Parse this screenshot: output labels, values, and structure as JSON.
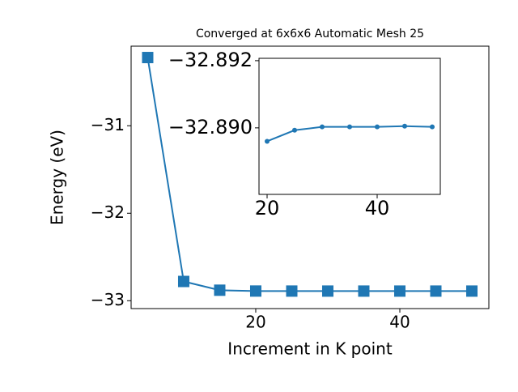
{
  "chart_data": [
    {
      "type": "line",
      "title": "Converged at 6x6x6 Automatic Mesh 25",
      "x_label": "Increment in K point",
      "y_label": "Energy (eV)",
      "x": [
        5,
        10,
        15,
        20,
        25,
        30,
        35,
        40,
        45,
        50
      ],
      "series": [
        {
          "color": "#1f77b4",
          "marker": "square",
          "values": [
            -30.22,
            -32.78,
            -32.88,
            -32.8896,
            -32.88993,
            -32.89003,
            -32.89003,
            -32.89003,
            -32.89005,
            -32.89003
          ]
        }
      ],
      "xlim": [
        2.7,
        52.36
      ],
      "ylim": [
        -33.09,
        -30.09
      ],
      "xticks": [
        20,
        40
      ],
      "yticks": [
        {
          "value": -33,
          "label": "−33"
        },
        {
          "value": -32,
          "label": "−32"
        },
        {
          "value": -31,
          "label": "−31"
        }
      ]
    },
    {
      "type": "line",
      "x": [
        20,
        25,
        30,
        35,
        40,
        45,
        50
      ],
      "series": [
        {
          "color": "#1f77b4",
          "marker": "circle",
          "values": [
            -32.8896,
            -32.88993,
            -32.89003,
            -32.89003,
            -32.89003,
            -32.89005,
            -32.89003
          ]
        }
      ],
      "xlim": [
        18.53,
        51.47
      ],
      "ylim": [
        -32.88802,
        -32.89207
      ],
      "xticks": [
        20,
        40
      ],
      "yticks": [
        {
          "value": -32.892,
          "label": "−32.892"
        },
        {
          "value": -32.89,
          "label": "−32.890"
        }
      ]
    }
  ]
}
